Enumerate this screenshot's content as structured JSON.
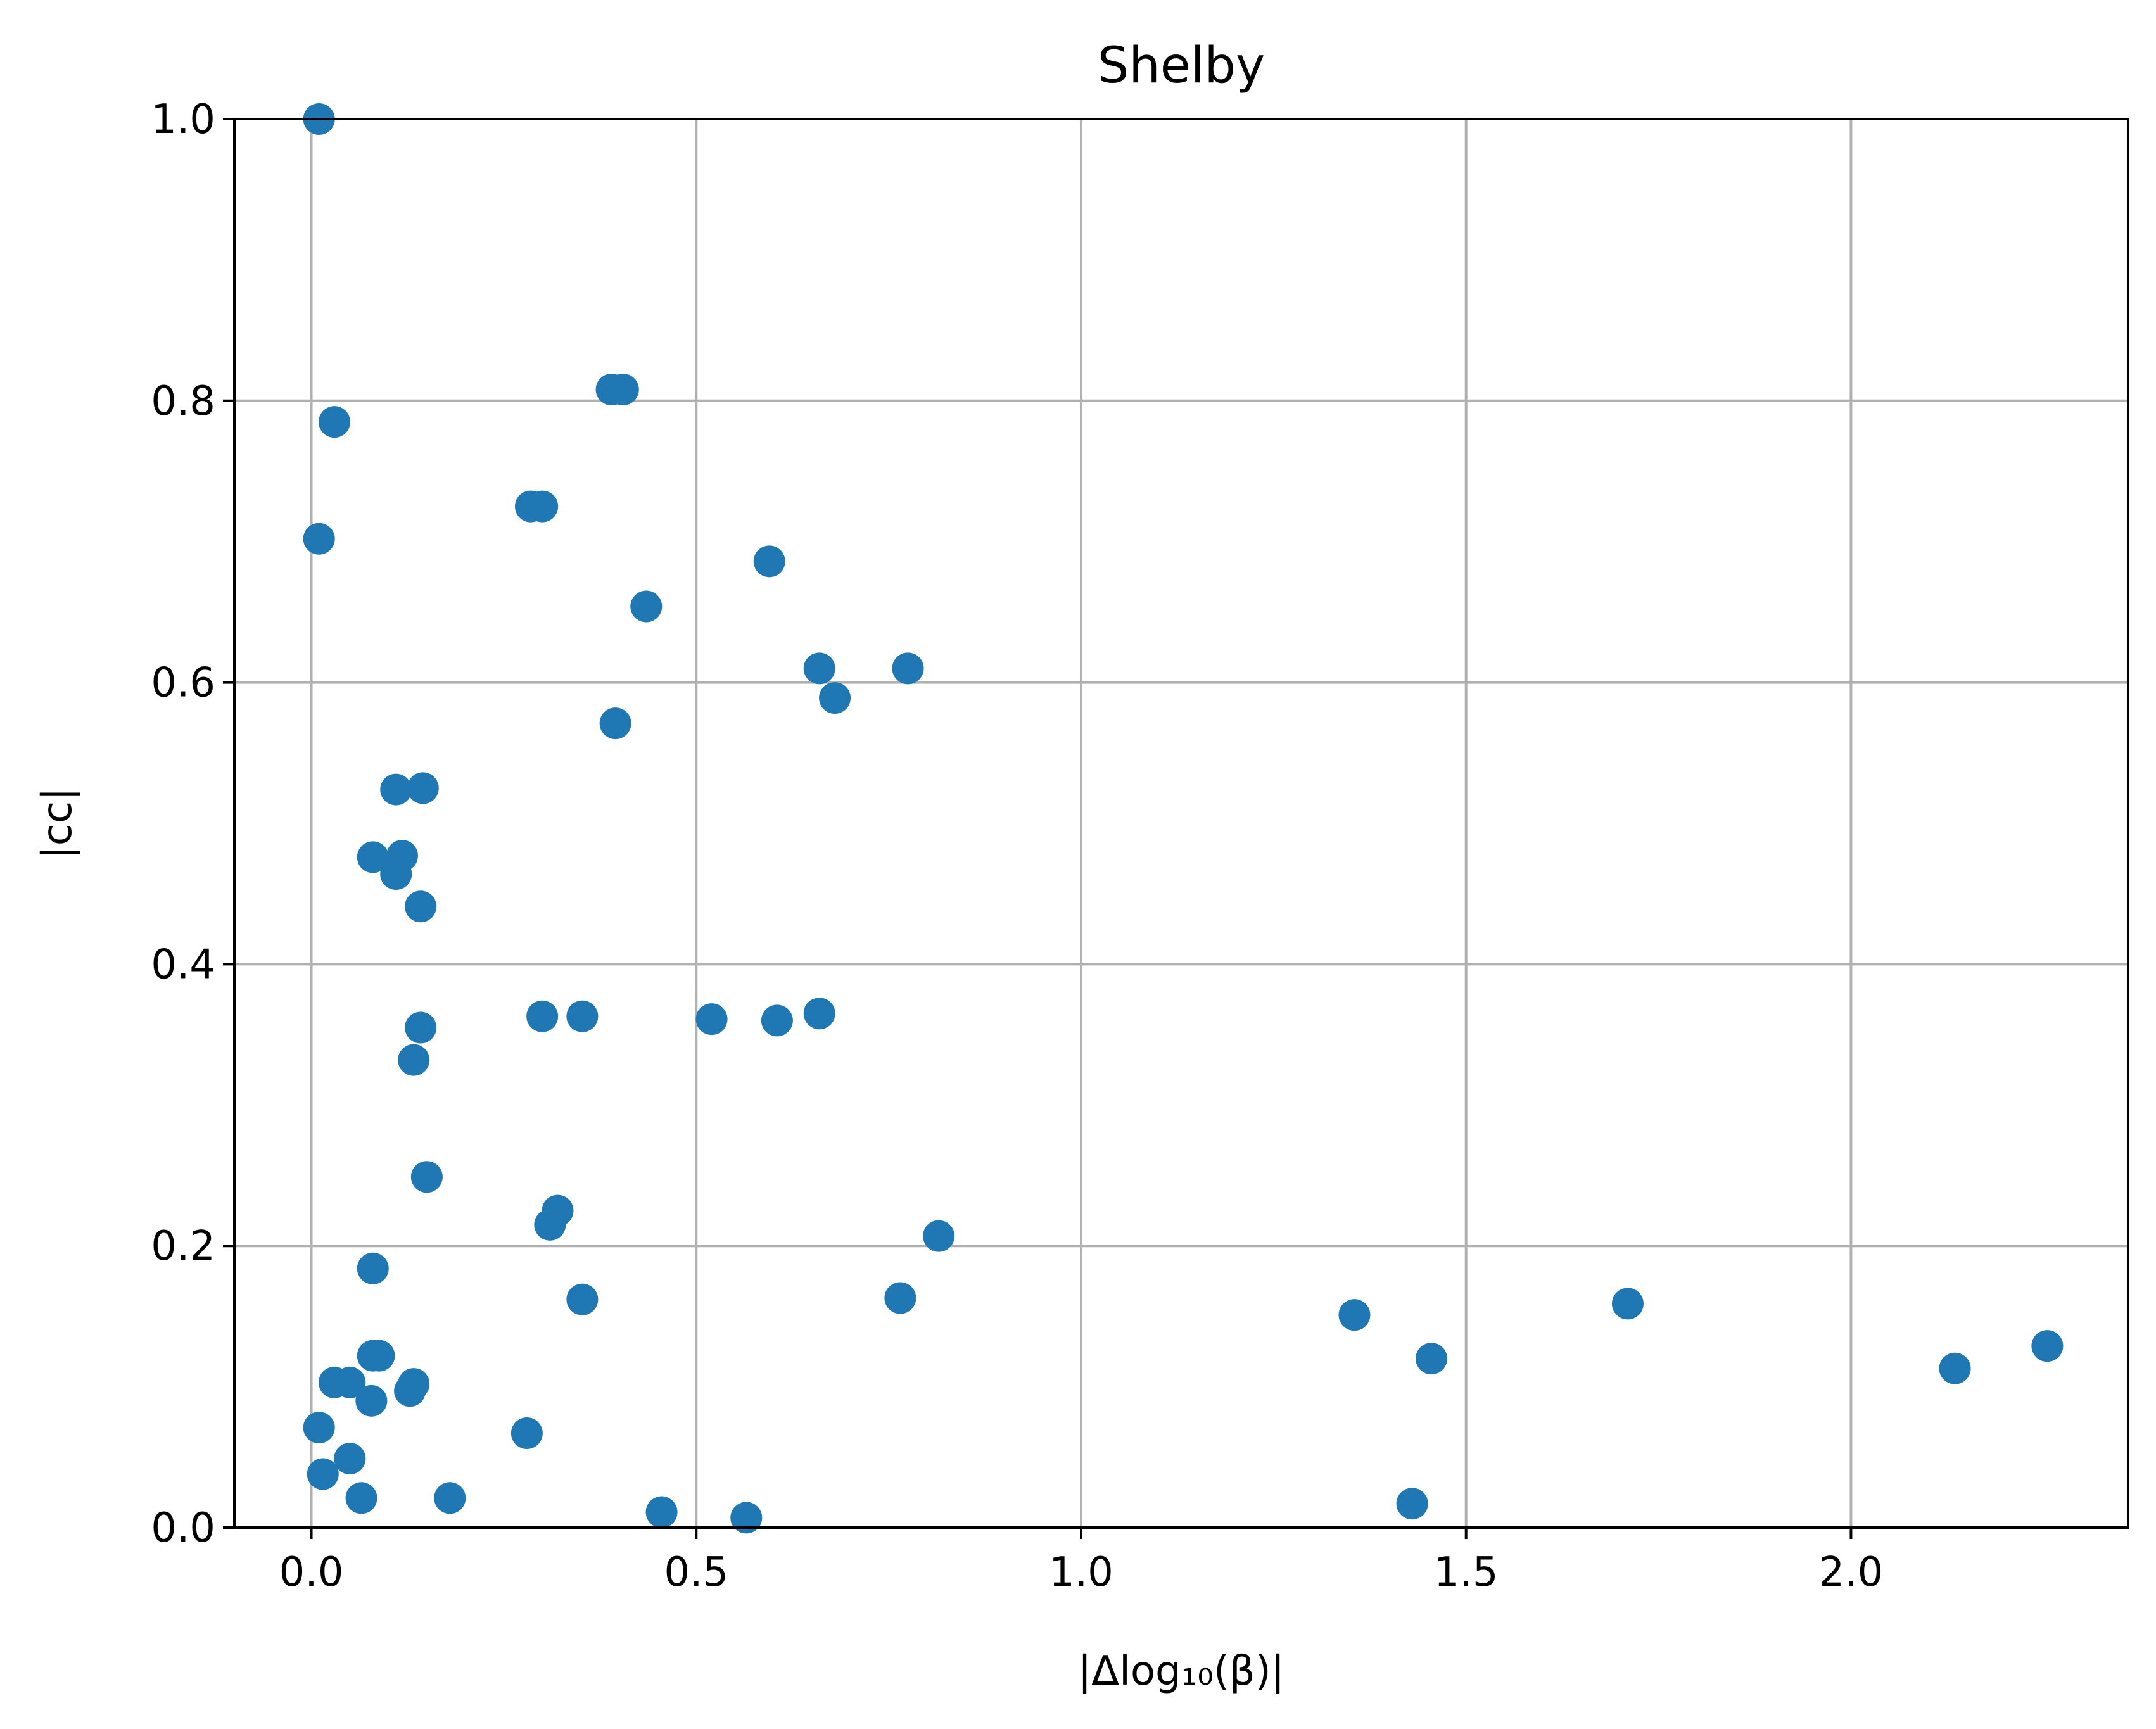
{
  "chart_data": {
    "type": "scatter",
    "title": "Shelby",
    "xlabel": "|Δlog₁₀(β)|",
    "ylabel": "|cc|",
    "xlim": [
      -0.1,
      2.36
    ],
    "ylim": [
      0.0,
      1.0
    ],
    "xticks": [
      "0.0",
      "0.5",
      "1.0",
      "1.5",
      "2.0"
    ],
    "xtick_values": [
      0.0,
      0.5,
      1.0,
      1.5,
      2.0
    ],
    "yticks": [
      "0.0",
      "0.2",
      "0.4",
      "0.6",
      "0.8",
      "1.0"
    ],
    "ytick_values": [
      0.0,
      0.2,
      0.4,
      0.6,
      0.8,
      1.0
    ],
    "grid": true,
    "color": "#1f77b4",
    "series": [
      {
        "points": [
          [
            0.01,
            1.0
          ],
          [
            0.03,
            0.785
          ],
          [
            0.01,
            0.702
          ],
          [
            0.39,
            0.808
          ],
          [
            0.405,
            0.808
          ],
          [
            0.285,
            0.725
          ],
          [
            0.3,
            0.725
          ],
          [
            0.595,
            0.686
          ],
          [
            0.435,
            0.654
          ],
          [
            0.66,
            0.61
          ],
          [
            0.775,
            0.61
          ],
          [
            0.68,
            0.589
          ],
          [
            0.395,
            0.571
          ],
          [
            0.11,
            0.524
          ],
          [
            0.145,
            0.525
          ],
          [
            0.08,
            0.476
          ],
          [
            0.118,
            0.477
          ],
          [
            0.11,
            0.464
          ],
          [
            0.142,
            0.441
          ],
          [
            0.3,
            0.363
          ],
          [
            0.352,
            0.363
          ],
          [
            0.52,
            0.361
          ],
          [
            0.605,
            0.36
          ],
          [
            0.66,
            0.365
          ],
          [
            0.142,
            0.355
          ],
          [
            0.133,
            0.332
          ],
          [
            0.15,
            0.249
          ],
          [
            0.32,
            0.225
          ],
          [
            0.31,
            0.215
          ],
          [
            0.815,
            0.207
          ],
          [
            0.08,
            0.184
          ],
          [
            0.352,
            0.162
          ],
          [
            0.765,
            0.163
          ],
          [
            1.355,
            0.151
          ],
          [
            1.71,
            0.159
          ],
          [
            0.08,
            0.122
          ],
          [
            0.088,
            0.122
          ],
          [
            1.455,
            0.12
          ],
          [
            0.03,
            0.103
          ],
          [
            0.05,
            0.103
          ],
          [
            0.133,
            0.102
          ],
          [
            0.128,
            0.097
          ],
          [
            0.078,
            0.09
          ],
          [
            2.255,
            0.129
          ],
          [
            2.135,
            0.113
          ],
          [
            0.01,
            0.071
          ],
          [
            0.28,
            0.067
          ],
          [
            0.05,
            0.049
          ],
          [
            0.015,
            0.038
          ],
          [
            0.065,
            0.021
          ],
          [
            0.18,
            0.021
          ],
          [
            1.43,
            0.017
          ],
          [
            0.455,
            0.011
          ],
          [
            0.565,
            0.007
          ]
        ]
      }
    ]
  }
}
